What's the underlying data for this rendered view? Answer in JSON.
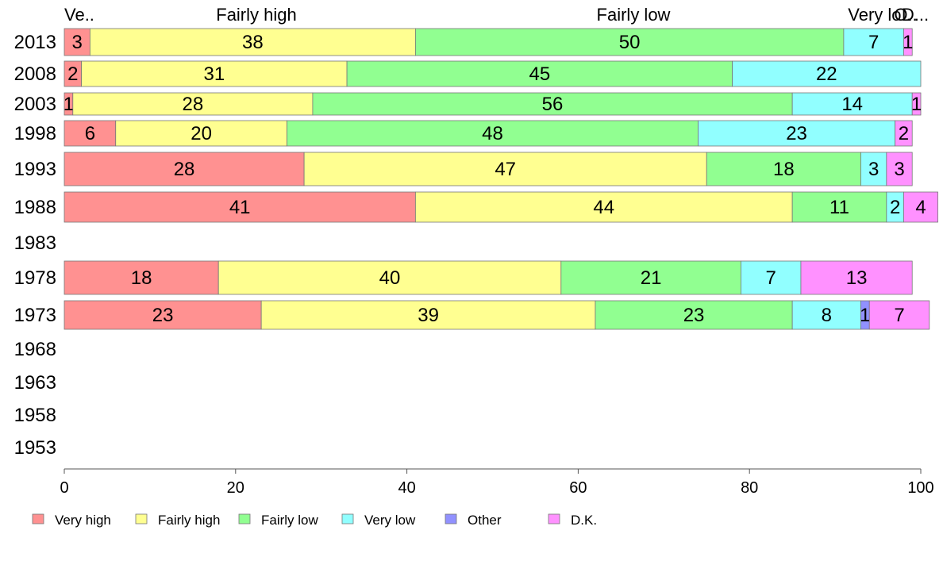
{
  "chart_data": {
    "type": "bar",
    "orientation": "horizontal",
    "stacked": true,
    "categories": [
      "2013",
      "2008",
      "2003",
      "1998",
      "1993",
      "1988",
      "1983",
      "1978",
      "1973",
      "1968",
      "1963",
      "1958",
      "1953"
    ],
    "series": [
      {
        "name": "Very high",
        "color": "#ff9191",
        "values": [
          3,
          2,
          1,
          6,
          28,
          41,
          null,
          18,
          23,
          null,
          null,
          null,
          null
        ]
      },
      {
        "name": "Fairly high",
        "color": "#ffff91",
        "values": [
          38,
          31,
          28,
          20,
          47,
          44,
          null,
          40,
          39,
          null,
          null,
          null,
          null
        ]
      },
      {
        "name": "Fairly low",
        "color": "#91ff91",
        "values": [
          50,
          45,
          56,
          48,
          18,
          11,
          null,
          21,
          23,
          null,
          null,
          null,
          null
        ]
      },
      {
        "name": "Very low",
        "color": "#91ffff",
        "values": [
          7,
          22,
          14,
          23,
          3,
          2,
          null,
          7,
          8,
          null,
          null,
          null,
          null
        ]
      },
      {
        "name": "Other",
        "color": "#9191ff",
        "values": [
          0,
          0,
          0,
          0,
          0,
          0,
          null,
          0,
          1,
          null,
          null,
          null,
          null
        ]
      },
      {
        "name": "D.K.",
        "color": "#ff91ff",
        "values": [
          1,
          0,
          1,
          2,
          3,
          4,
          null,
          13,
          7,
          null,
          null,
          null,
          null
        ]
      }
    ],
    "top_labels": [
      "Ve..",
      "Fairly high",
      "Fairly low",
      "Very lo..",
      "O..",
      "D..."
    ],
    "xlim": [
      0,
      100
    ],
    "x_ticks": [
      0,
      20,
      40,
      60,
      80,
      100
    ],
    "title": "",
    "xlabel": "",
    "ylabel": "",
    "grid": false,
    "legend_position": "bottom"
  }
}
